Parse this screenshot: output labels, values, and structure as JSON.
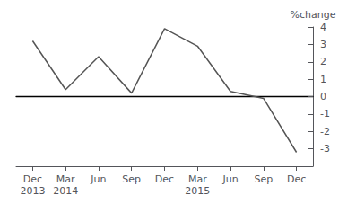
{
  "chart_data": {
    "type": "line",
    "categories": [
      "Dec\n2013",
      "Mar\n2014",
      "Jun",
      "Sep",
      "Dec",
      "Mar\n2015",
      "Jun",
      "Sep",
      "Dec"
    ],
    "values": [
      3.2,
      0.4,
      2.3,
      0.2,
      3.9,
      2.9,
      0.3,
      -0.1,
      -3.2
    ],
    "color": "#555555",
    "ylabel": "%change",
    "ylim": [
      -4,
      4
    ],
    "yticks": [
      -3,
      -2,
      -1,
      0,
      1,
      2,
      3,
      4
    ],
    "grid": false
  }
}
